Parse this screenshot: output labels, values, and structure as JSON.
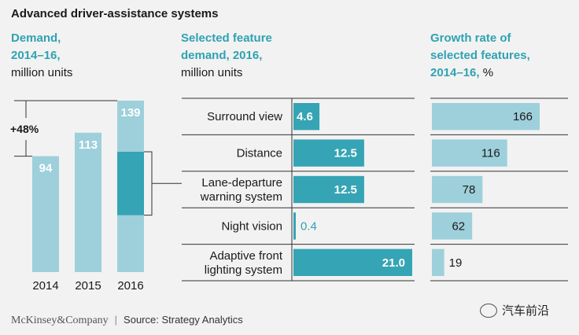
{
  "title": "Advanced driver-assistance systems",
  "headers": {
    "demand": {
      "accent": "Demand,\n2014–16,",
      "unit": "million units"
    },
    "features": {
      "accent": "Selected feature\ndemand, 2016,",
      "unit": "million units"
    },
    "growth": {
      "accent": "Growth rate of\nselected features,\n2014–16,",
      "unit": " %"
    }
  },
  "annotation": "+48%",
  "footer": {
    "logo": "McKinsey&Company",
    "separator": "|",
    "source": "Source: Strategy Analytics"
  },
  "watermark": "汽车前沿",
  "colors": {
    "light": "#9dd0db",
    "dark": "#35a4b4",
    "text_accent": "#2fa2b3",
    "line": "#333333"
  },
  "chart_data": [
    {
      "type": "bar",
      "categories": [
        "2014",
        "2015",
        "2016"
      ],
      "values": [
        94,
        113,
        139
      ],
      "highlight": {
        "category": "2016",
        "value": 51.4
      }
    },
    {
      "type": "bar",
      "orientation": "horizontal",
      "categories": [
        "Surround view",
        "Distance",
        "Lane-departure warning system",
        "Night vision",
        "Adaptive front lighting system"
      ],
      "values": [
        4.6,
        12.5,
        12.5,
        0.4,
        21.0
      ],
      "value_labels": [
        "4.6",
        "12.5",
        "12.5",
        "0.4",
        "21.0"
      ]
    },
    {
      "type": "bar",
      "orientation": "horizontal",
      "categories": [
        "Surround view",
        "Distance",
        "Lane-departure warning system",
        "Night vision",
        "Adaptive front lighting system"
      ],
      "values": [
        166,
        116,
        78,
        62,
        19
      ]
    }
  ]
}
